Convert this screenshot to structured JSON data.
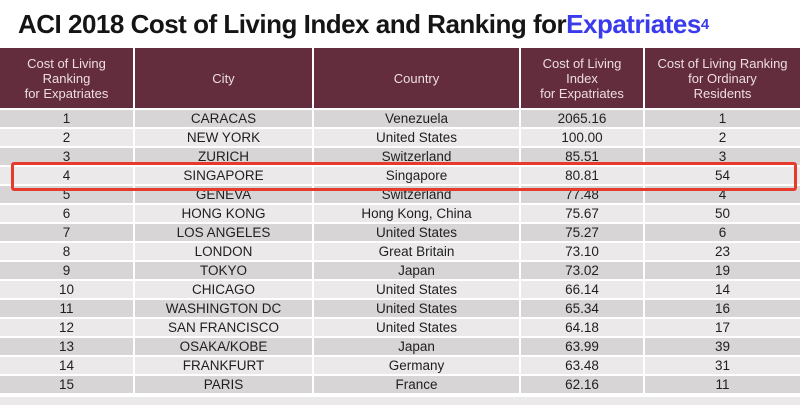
{
  "title": {
    "main": "ACI 2018 Cost of Living Index and Ranking for ",
    "highlight": "Expatriates",
    "superscript": "4"
  },
  "colors": {
    "header_bg": "#632d3d",
    "header_text": "#eddde3",
    "row_dark": "#d8d5d6",
    "row_light": "#ebe9ea",
    "highlight_border": "#e63a2d",
    "title_highlight": "#3b3bee",
    "body_text": "#1f1f1f"
  },
  "table": {
    "columns": [
      {
        "id": "rank",
        "label_lines": [
          "Cost of Living",
          "Ranking",
          "for Expatriates"
        ]
      },
      {
        "id": "city",
        "label_lines": [
          "City"
        ]
      },
      {
        "id": "country",
        "label_lines": [
          "Country"
        ]
      },
      {
        "id": "index",
        "label_lines": [
          "Cost of Living",
          "Index",
          "for Expatriates"
        ]
      },
      {
        "id": "ordinary_rank",
        "label_lines": [
          "Cost of Living Ranking",
          "for Ordinary",
          "Residents"
        ]
      }
    ],
    "rows": [
      {
        "rank": "1",
        "city": "CARACAS",
        "country": "Venezuela",
        "index": "2065.16",
        "ordinary_rank": "1",
        "highlighted": false
      },
      {
        "rank": "2",
        "city": "NEW YORK",
        "country": "United States",
        "index": "100.00",
        "ordinary_rank": "2",
        "highlighted": false
      },
      {
        "rank": "3",
        "city": "ZURICH",
        "country": "Switzerland",
        "index": "85.51",
        "ordinary_rank": "3",
        "highlighted": false
      },
      {
        "rank": "4",
        "city": "SINGAPORE",
        "country": "Singapore",
        "index": "80.81",
        "ordinary_rank": "54",
        "highlighted": true
      },
      {
        "rank": "5",
        "city": "GENEVA",
        "country": "Switzerland",
        "index": "77.48",
        "ordinary_rank": "4",
        "highlighted": false
      },
      {
        "rank": "6",
        "city": "HONG KONG",
        "country": "Hong Kong, China",
        "index": "75.67",
        "ordinary_rank": "50",
        "highlighted": false
      },
      {
        "rank": "7",
        "city": "LOS ANGELES",
        "country": "United States",
        "index": "75.27",
        "ordinary_rank": "6",
        "highlighted": false
      },
      {
        "rank": "8",
        "city": "LONDON",
        "country": "Great Britain",
        "index": "73.10",
        "ordinary_rank": "23",
        "highlighted": false
      },
      {
        "rank": "9",
        "city": "TOKYO",
        "country": "Japan",
        "index": "73.02",
        "ordinary_rank": "19",
        "highlighted": false
      },
      {
        "rank": "10",
        "city": "CHICAGO",
        "country": "United States",
        "index": "66.14",
        "ordinary_rank": "14",
        "highlighted": false
      },
      {
        "rank": "11",
        "city": "WASHINGTON DC",
        "country": "United States",
        "index": "65.34",
        "ordinary_rank": "16",
        "highlighted": false
      },
      {
        "rank": "12",
        "city": "SAN FRANCISCO",
        "country": "United States",
        "index": "64.18",
        "ordinary_rank": "17",
        "highlighted": false
      },
      {
        "rank": "13",
        "city": "OSAKA/KOBE",
        "country": "Japan",
        "index": "63.99",
        "ordinary_rank": "39",
        "highlighted": false
      },
      {
        "rank": "14",
        "city": "FRANKFURT",
        "country": "Germany",
        "index": "63.48",
        "ordinary_rank": "31",
        "highlighted": false
      },
      {
        "rank": "15",
        "city": "PARIS",
        "country": "France",
        "index": "62.16",
        "ordinary_rank": "11",
        "highlighted": false
      }
    ]
  }
}
